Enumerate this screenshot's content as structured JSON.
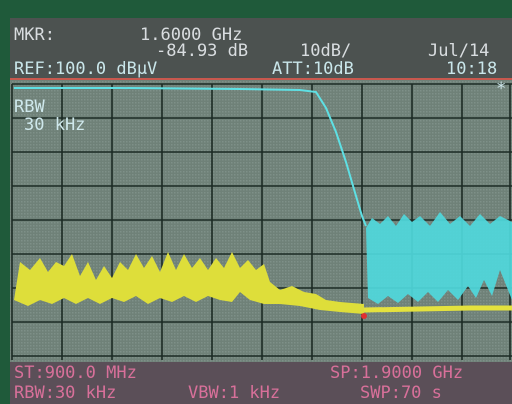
{
  "header": {
    "marker_label": "MKR:",
    "marker_frequency": "1.6000 GHz",
    "marker_level": "-84.93 dB",
    "scale": "10dB/",
    "date": "Jul/14",
    "reference_level": "REF:100.0 dBµV",
    "attenuation": "ATT:10dB",
    "time": "10:18",
    "status": "*"
  },
  "side": {
    "rbw_label": "RBW",
    "rbw_value": "30 kHz"
  },
  "footer": {
    "start": "ST:900.0 MHz",
    "stop": "SP:1.9000 GHz",
    "rbw": "RBW:30 kHz",
    "vbw": "VBW:1 kHz",
    "sweep": "SWP:70 s"
  }
}
